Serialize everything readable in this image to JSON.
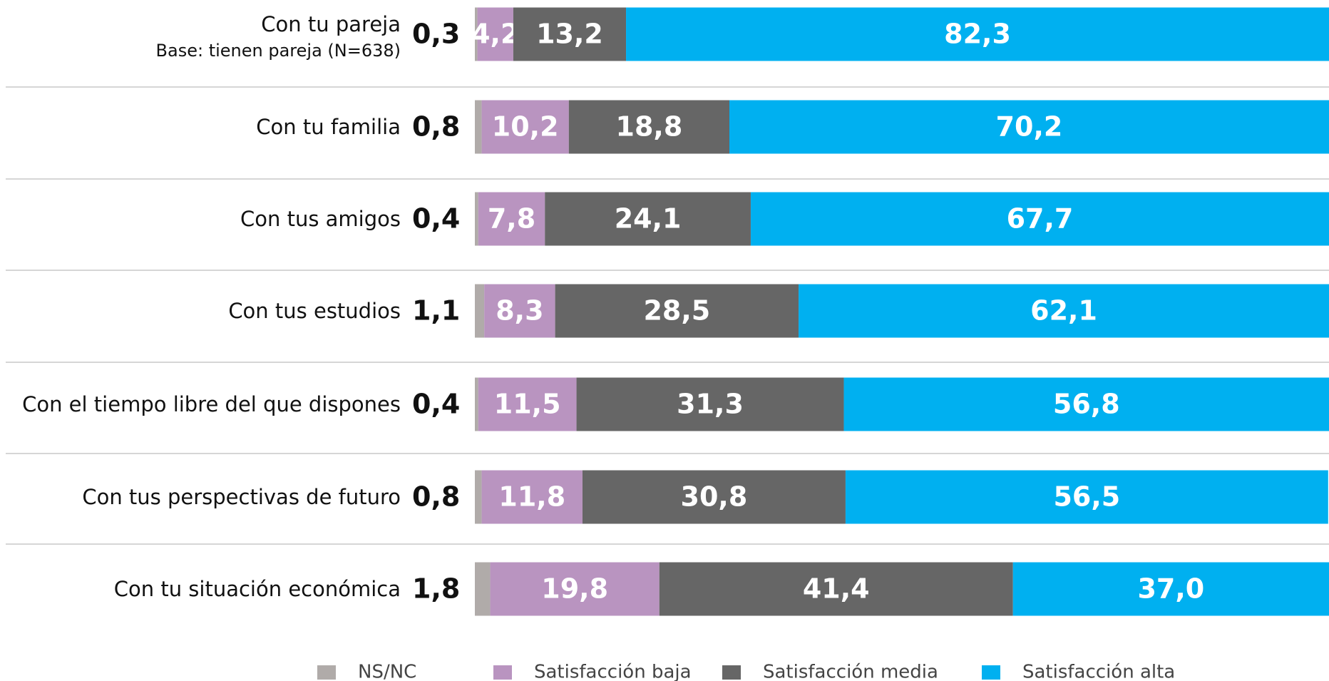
{
  "chart_data": {
    "type": "stacked-bar-horizontal",
    "categories": [
      "Con tu pareja",
      "Con tu familia",
      "Con tus amigos",
      "Con tus estudios",
      "Con el tiempo libre del que dispones",
      "Con tus perspectivas de futuro",
      "Con tu situación económica"
    ],
    "category_note": "Base: tienen pareja (N=638)",
    "xlim": [
      0,
      100
    ],
    "series": [
      {
        "name": "NS/NC",
        "color": "#b0aba9",
        "values": [
          0.3,
          0.8,
          0.4,
          1.1,
          0.4,
          0.8,
          1.8
        ],
        "value_labels": [
          "0,3",
          "0,8",
          "0,4",
          "1,1",
          "0,4",
          "0,8",
          "1,8"
        ]
      },
      {
        "name": "Satisfacción baja",
        "color": "#b994c0",
        "values": [
          4.2,
          10.2,
          7.8,
          8.3,
          11.5,
          11.8,
          19.8
        ],
        "value_labels": [
          "4,2",
          "10,2",
          "7,8",
          "8,3",
          "11,5",
          "11,8",
          "19,8"
        ]
      },
      {
        "name": "Satisfacción media",
        "color": "#666666",
        "values": [
          13.2,
          18.8,
          24.1,
          28.5,
          31.3,
          30.8,
          41.4
        ],
        "value_labels": [
          "13,2",
          "18,8",
          "24,1",
          "28,5",
          "31,3",
          "30,8",
          "41,4"
        ]
      },
      {
        "name": "Satisfacción alta",
        "color": "#00b0f0",
        "values": [
          82.3,
          70.2,
          67.7,
          62.1,
          56.8,
          56.5,
          37.0
        ],
        "value_labels": [
          "82,3",
          "70,2",
          "67,7",
          "62,1",
          "56,8",
          "56,5",
          "37,0"
        ]
      }
    ]
  }
}
